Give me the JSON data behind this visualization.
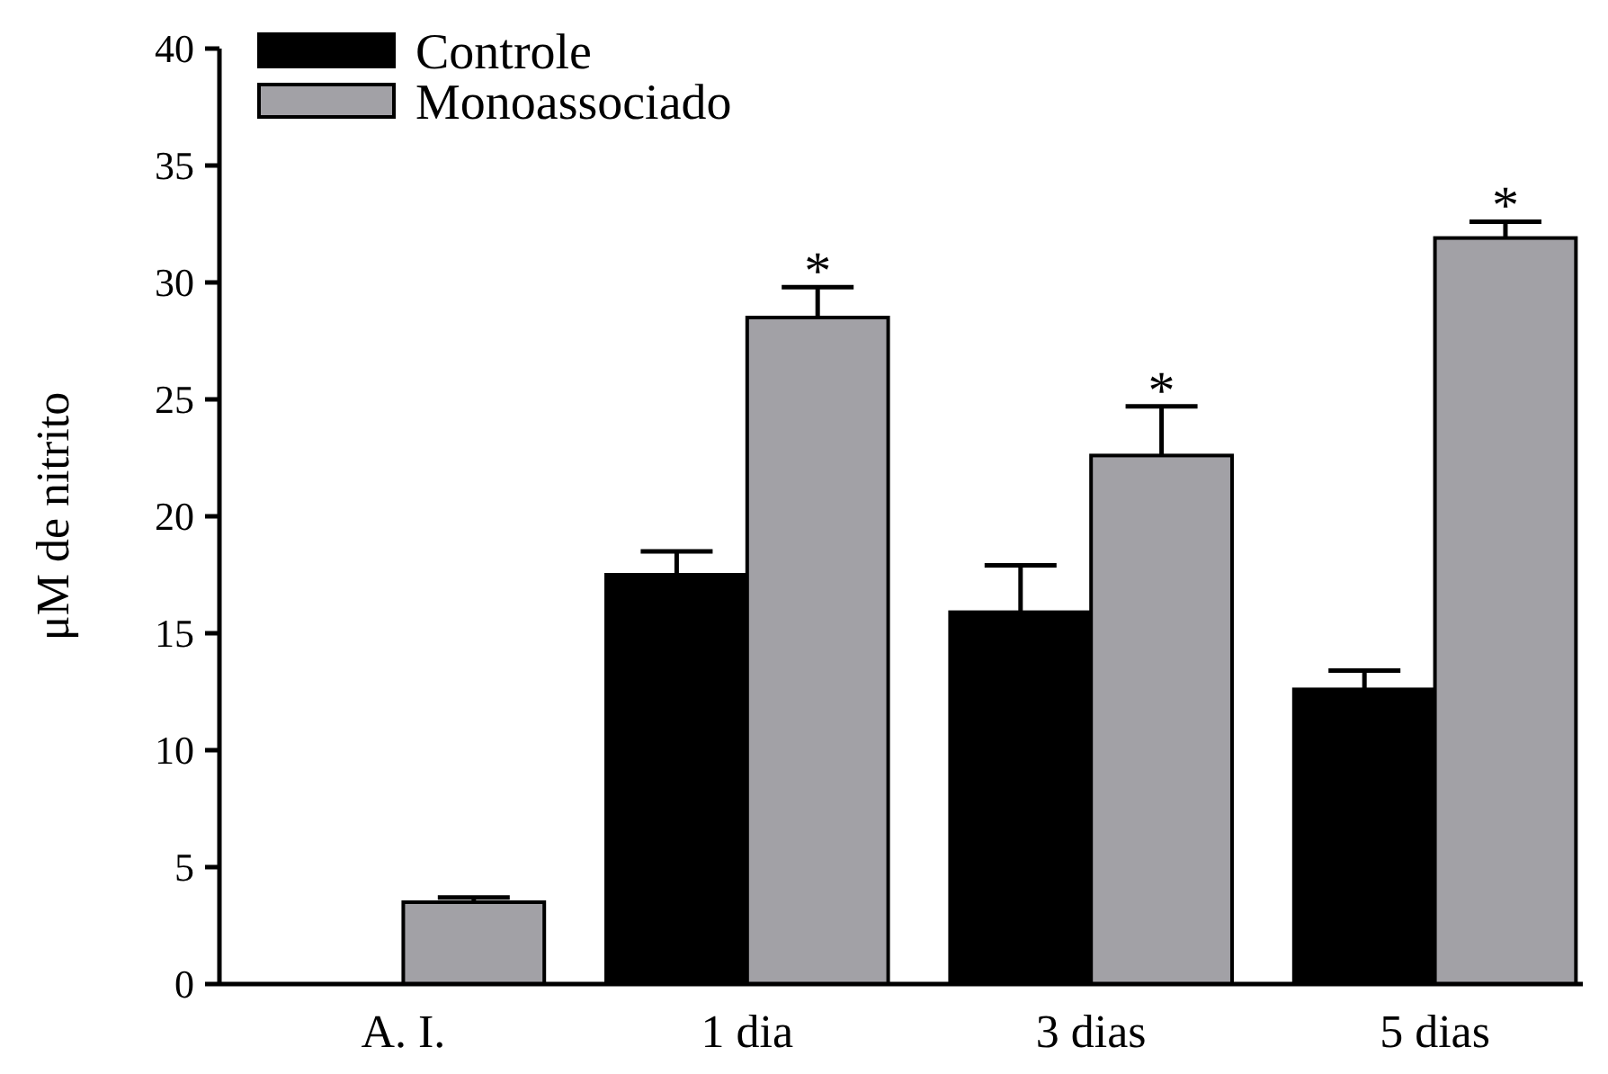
{
  "chart_data": {
    "type": "bar",
    "ylabel": "μM de nitrito",
    "categories": [
      "A. I.",
      "1 dia",
      "3 dias",
      "5 dias"
    ],
    "series": [
      {
        "name": "Controle",
        "color": "#000000",
        "values": [
          0,
          17.5,
          15.9,
          12.6
        ],
        "errors": [
          null,
          [
            17.5,
            18.5
          ],
          [
            15.9,
            17.9
          ],
          [
            12.6,
            13.4
          ]
        ]
      },
      {
        "name": "Monoassociado",
        "color": "#a2a1a6",
        "values": [
          3.5,
          28.5,
          22.6,
          31.9
        ],
        "errors": [
          [
            3.5,
            3.7
          ],
          [
            28.5,
            29.8
          ],
          [
            22.6,
            24.7
          ],
          [
            31.9,
            32.6
          ]
        ]
      }
    ],
    "ylim": [
      0,
      40
    ],
    "yticks": [
      0,
      5,
      10,
      15,
      20,
      25,
      30,
      35,
      40
    ],
    "grid": false,
    "legend": "top left",
    "annotations": [
      "*",
      "*",
      "*"
    ]
  }
}
